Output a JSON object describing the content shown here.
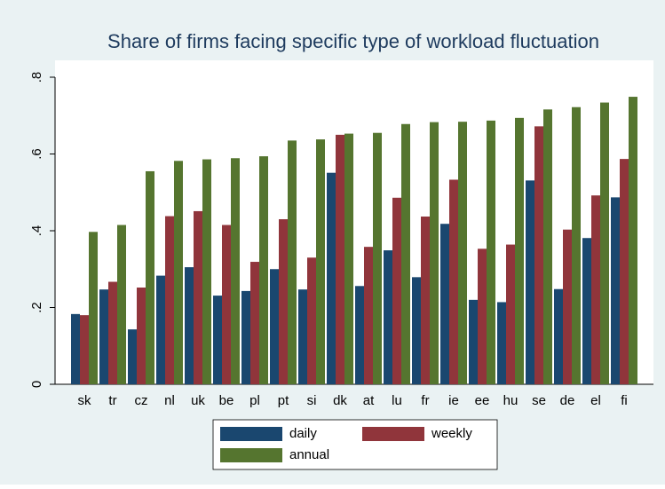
{
  "chart_data": {
    "type": "bar",
    "title": "Share of firms facing specific type of workload fluctuation",
    "categories": [
      "sk",
      "tr",
      "cz",
      "nl",
      "uk",
      "be",
      "pl",
      "pt",
      "si",
      "dk",
      "at",
      "lu",
      "fr",
      "ie",
      "ee",
      "hu",
      "se",
      "de",
      "el",
      "fi"
    ],
    "series": [
      {
        "name": "daily",
        "color": "#1a476f",
        "values": [
          0.183,
          0.247,
          0.143,
          0.283,
          0.305,
          0.231,
          0.243,
          0.3,
          0.247,
          0.551,
          0.256,
          0.349,
          0.279,
          0.418,
          0.22,
          0.214,
          0.531,
          0.248,
          0.381,
          0.487
        ]
      },
      {
        "name": "weekly",
        "color": "#90353b",
        "values": [
          0.18,
          0.267,
          0.252,
          0.438,
          0.451,
          0.415,
          0.319,
          0.43,
          0.33,
          0.65,
          0.358,
          0.486,
          0.437,
          0.533,
          0.353,
          0.364,
          0.672,
          0.403,
          0.492,
          0.587
        ]
      },
      {
        "name": "annual",
        "color": "#55752f",
        "values": [
          0.397,
          0.415,
          0.555,
          0.582,
          0.586,
          0.589,
          0.594,
          0.635,
          0.638,
          0.653,
          0.655,
          0.678,
          0.683,
          0.684,
          0.687,
          0.694,
          0.716,
          0.722,
          0.734,
          0.749
        ]
      }
    ],
    "ylim": [
      0,
      0.8
    ],
    "yticks": [
      {
        "value": 0,
        "label": "0"
      },
      {
        "value": 0.2,
        "label": ".2"
      },
      {
        "value": 0.4,
        "label": ".4"
      },
      {
        "value": 0.6,
        "label": ".6"
      },
      {
        "value": 0.8,
        "label": ".8"
      }
    ],
    "grid": false,
    "legend": "bottom"
  }
}
